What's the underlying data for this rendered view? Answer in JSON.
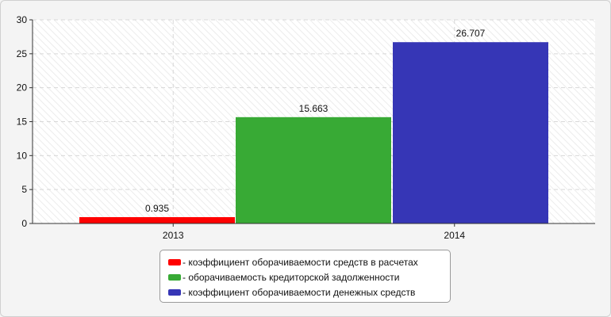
{
  "chart_data": {
    "type": "bar",
    "categories": [
      "2013",
      "2014"
    ],
    "ylim": [
      0,
      30
    ],
    "yticks": [
      0,
      5,
      10,
      15,
      20,
      25,
      30
    ],
    "grid": true,
    "legend_position": "bottom",
    "series": [
      {
        "name": "коэффициент оборачиваемости средств в расчетах",
        "color": "#ff0000",
        "category": "2013",
        "value": 0.935,
        "label": "0.935"
      },
      {
        "name": "оборачиваемость кредиторской задолженности",
        "color": "#38aa35",
        "category": "2014",
        "value": 15.663,
        "label": "15.663"
      },
      {
        "name": "коэффициент оборачиваемости денежных средств",
        "color": "#3636b6",
        "category": "2014",
        "value": 26.707,
        "label": "26.707"
      }
    ]
  },
  "legend": {
    "prefix": "- ",
    "items": [
      {
        "text": "- коэффициент оборачиваемости средств в расчетах",
        "color": "#ff0000"
      },
      {
        "text": "- оборачиваемость кредиторской задолженности",
        "color": "#38aa35"
      },
      {
        "text": "- коэффициент оборачиваемости денежных средств",
        "color": "#3636b6"
      }
    ]
  }
}
